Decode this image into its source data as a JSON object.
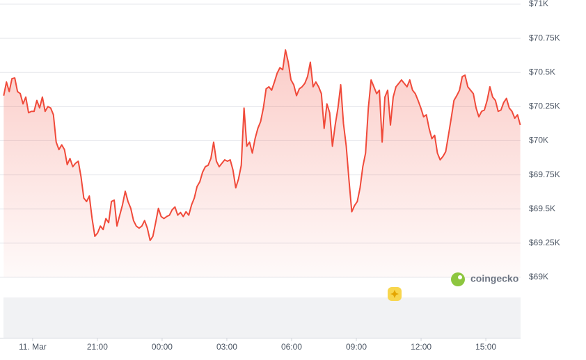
{
  "chart_data": {
    "type": "area",
    "color": "#f04a3a",
    "watermark": "coingecko",
    "grid": true,
    "ylim": [
      69000,
      71000
    ],
    "yticks": [
      {
        "value": 71000,
        "label": "$71K"
      },
      {
        "value": 70750,
        "label": "$70.75K"
      },
      {
        "value": 70500,
        "label": "$70.5K"
      },
      {
        "value": 70250,
        "label": "$70.25K"
      },
      {
        "value": 70000,
        "label": "$70K"
      },
      {
        "value": 69750,
        "label": "$69.75K"
      },
      {
        "value": 69500,
        "label": "$69.5K"
      },
      {
        "value": 69250,
        "label": "$69.25K"
      },
      {
        "value": 69000,
        "label": "$69K"
      }
    ],
    "xlim": [
      16.65,
      40.61
    ],
    "xticks": [
      {
        "value": 18,
        "label": "11. Mar"
      },
      {
        "value": 21,
        "label": "21:00"
      },
      {
        "value": 24,
        "label": "00:00"
      },
      {
        "value": 27,
        "label": "03:00"
      },
      {
        "value": 30,
        "label": "06:00"
      },
      {
        "value": 33,
        "label": "09:00"
      },
      {
        "value": 36,
        "label": "12:00"
      },
      {
        "value": 39,
        "label": "15:00"
      }
    ],
    "x": [
      16.66,
      16.788,
      16.916,
      17.044,
      17.172,
      17.3,
      17.428,
      17.556,
      17.684,
      17.812,
      17.94,
      18.068,
      18.196,
      18.324,
      18.452,
      18.58,
      18.708,
      18.836,
      18.964,
      19.092,
      19.22,
      19.348,
      19.476,
      19.604,
      19.732,
      19.86,
      19.988,
      20.116,
      20.244,
      20.372,
      20.5,
      20.628,
      20.756,
      20.884,
      21.012,
      21.14,
      21.268,
      21.396,
      21.524,
      21.652,
      21.78,
      21.908,
      22.036,
      22.164,
      22.292,
      22.42,
      22.548,
      22.676,
      22.804,
      22.932,
      23.06,
      23.188,
      23.316,
      23.444,
      23.572,
      23.7,
      23.828,
      23.956,
      24.084,
      24.212,
      24.34,
      24.468,
      24.596,
      24.724,
      24.852,
      24.98,
      25.108,
      25.236,
      25.364,
      25.492,
      25.62,
      25.748,
      25.876,
      26.004,
      26.132,
      26.26,
      26.388,
      26.516,
      26.644,
      26.772,
      26.9,
      27.028,
      27.156,
      27.284,
      27.412,
      27.54,
      27.668,
      27.796,
      27.924,
      28.052,
      28.18,
      28.308,
      28.436,
      28.564,
      28.692,
      28.82,
      28.948,
      29.076,
      29.204,
      29.332,
      29.46,
      29.588,
      29.716,
      29.844,
      29.972,
      30.1,
      30.228,
      30.356,
      30.484,
      30.612,
      30.74,
      30.868,
      30.996,
      31.124,
      31.252,
      31.38,
      31.508,
      31.636,
      31.764,
      31.892,
      32.02,
      32.148,
      32.276,
      32.404,
      32.532,
      32.66,
      32.788,
      32.916,
      33.044,
      33.172,
      33.3,
      33.428,
      33.556,
      33.684,
      33.812,
      33.94,
      34.068,
      34.196,
      34.324,
      34.452,
      34.58,
      34.708,
      34.836,
      34.964,
      35.092,
      35.22,
      35.348,
      35.476,
      35.604,
      35.732,
      35.86,
      35.988,
      36.116,
      36.244,
      36.372,
      36.5,
      36.628,
      36.756,
      36.884,
      37.012,
      37.14,
      37.268,
      37.396,
      37.524,
      37.652,
      37.78,
      37.908,
      38.036,
      38.164,
      38.292,
      38.42,
      38.548,
      38.676,
      38.804,
      38.932,
      39.06,
      39.188,
      39.316,
      39.444,
      39.572,
      39.7,
      39.828,
      39.956,
      40.084,
      40.212,
      40.34,
      40.468,
      40.596
    ],
    "values": [
      70330,
      70430,
      70360,
      70455,
      70460,
      70360,
      70345,
      70270,
      70320,
      70205,
      70215,
      70215,
      70295,
      70240,
      70320,
      70215,
      70250,
      70240,
      70190,
      69990,
      69935,
      69970,
      69935,
      69825,
      69870,
      69810,
      69835,
      69850,
      69735,
      69580,
      69555,
      69595,
      69430,
      69300,
      69325,
      69375,
      69350,
      69430,
      69400,
      69555,
      69565,
      69375,
      69455,
      69530,
      69630,
      69555,
      69505,
      69415,
      69375,
      69360,
      69375,
      69415,
      69360,
      69270,
      69300,
      69400,
      69505,
      69445,
      69430,
      69445,
      69455,
      69495,
      69515,
      69455,
      69475,
      69445,
      69480,
      69455,
      69530,
      69580,
      69665,
      69700,
      69770,
      69810,
      69820,
      69870,
      69990,
      69850,
      69810,
      69835,
      69860,
      69850,
      69860,
      69785,
      69655,
      69720,
      69820,
      70240,
      69960,
      69990,
      69910,
      70015,
      70090,
      70140,
      70240,
      70380,
      70395,
      70370,
      70430,
      70495,
      70535,
      70520,
      70665,
      70575,
      70445,
      70410,
      70330,
      70380,
      70395,
      70420,
      70470,
      70575,
      70395,
      70430,
      70395,
      70345,
      70090,
      70270,
      70205,
      69960,
      70115,
      70240,
      70410,
      70125,
      69960,
      69710,
      69480,
      69525,
      69555,
      69655,
      69810,
      69910,
      70240,
      70445,
      70395,
      70345,
      70370,
      69990,
      70320,
      70370,
      70115,
      70320,
      70395,
      70420,
      70445,
      70420,
      70395,
      70445,
      70370,
      70345,
      70295,
      70240,
      70175,
      70190,
      70090,
      70015,
      70040,
      69910,
      69860,
      69885,
      69920,
      70040,
      70165,
      70295,
      70330,
      70370,
      70470,
      70480,
      70395,
      70370,
      70345,
      70240,
      70175,
      70215,
      70225,
      70295,
      70395,
      70320,
      70295,
      70215,
      70225,
      70280,
      70310,
      70240,
      70215,
      70165,
      70190,
      70115
    ]
  }
}
